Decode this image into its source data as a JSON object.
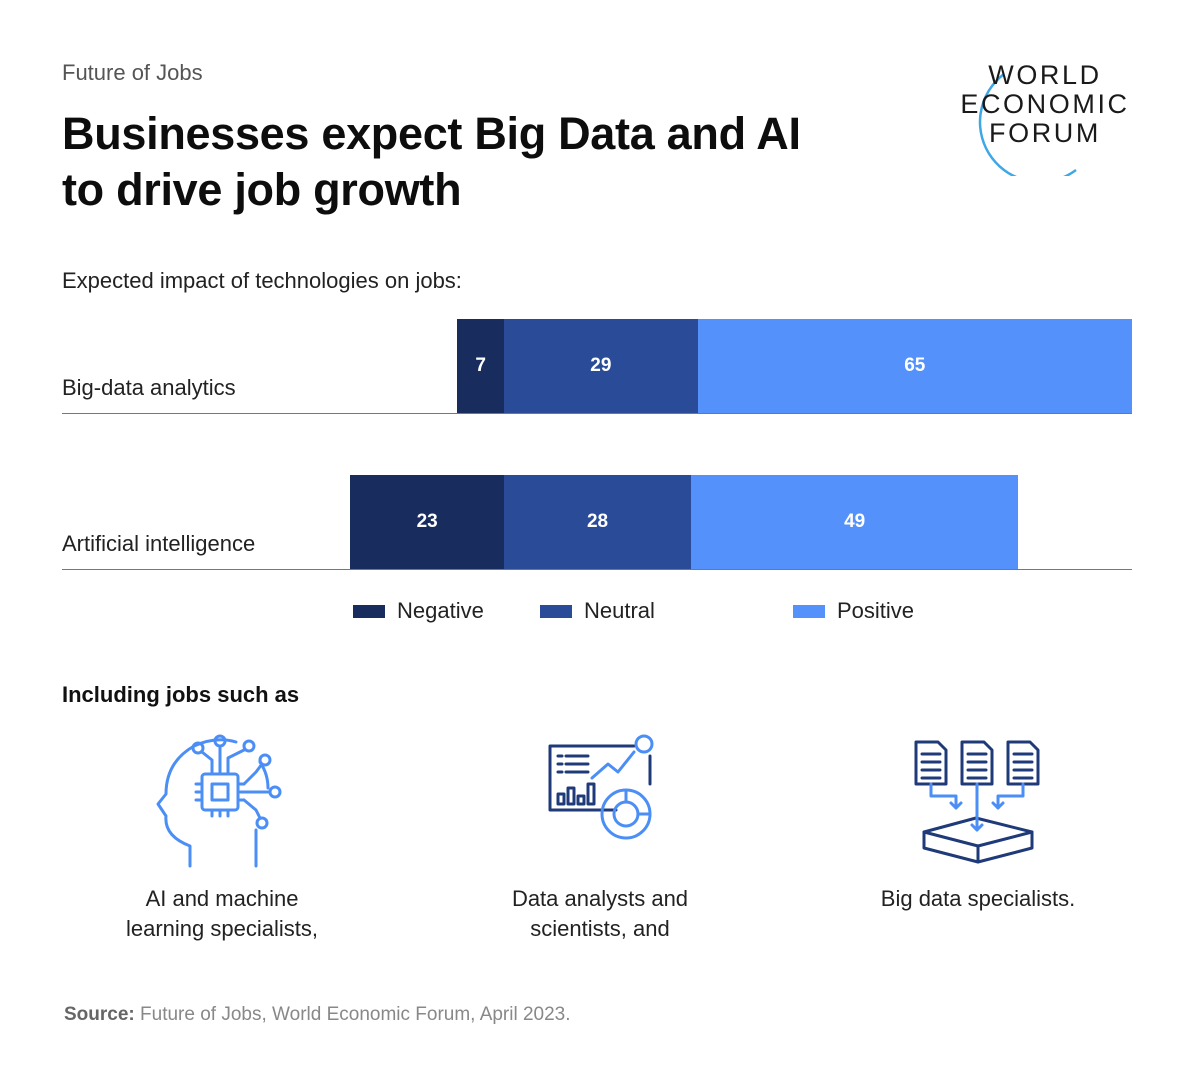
{
  "header": {
    "kicker": "Future of Jobs",
    "title_line1": "Businesses expect Big Data and AI",
    "title_line2": "to drive job growth"
  },
  "logo": {
    "line1": "WORLD",
    "line2": "ECONOMIC",
    "line3": "FORUM"
  },
  "chart_data": {
    "type": "bar",
    "orientation": "horizontal",
    "stacked": true,
    "title": "Expected impact of technologies on jobs:",
    "categories": [
      "Big-data analytics",
      "Artificial intelligence"
    ],
    "series": [
      {
        "name": "Negative",
        "color": "#182c5e",
        "values": [
          7,
          23
        ]
      },
      {
        "name": "Neutral",
        "color": "#2a4c98",
        "values": [
          29,
          28
        ]
      },
      {
        "name": "Positive",
        "color": "#5591fb",
        "values": [
          65,
          49
        ]
      }
    ],
    "xlim": [
      -50,
      100
    ],
    "legend": "bottom"
  },
  "jobs": {
    "heading": "Including jobs such as",
    "items": [
      {
        "icon": "ai-head-icon",
        "line1": "AI and machine",
        "line2": "learning specialists,"
      },
      {
        "icon": "analytics-dashboard-icon",
        "line1": "Data analysts and",
        "line2": "scientists, and"
      },
      {
        "icon": "big-data-icon",
        "line1": "Big data specialists.",
        "line2": ""
      }
    ]
  },
  "source": {
    "label": "Source:",
    "text": "Future of Jobs, World Economic Forum, April 2023."
  },
  "colors": {
    "negative": "#182c5e",
    "neutral": "#2a4c98",
    "positive": "#5591fb",
    "icon": "#4b8ef5",
    "icon_dark": "#1f3a78"
  }
}
